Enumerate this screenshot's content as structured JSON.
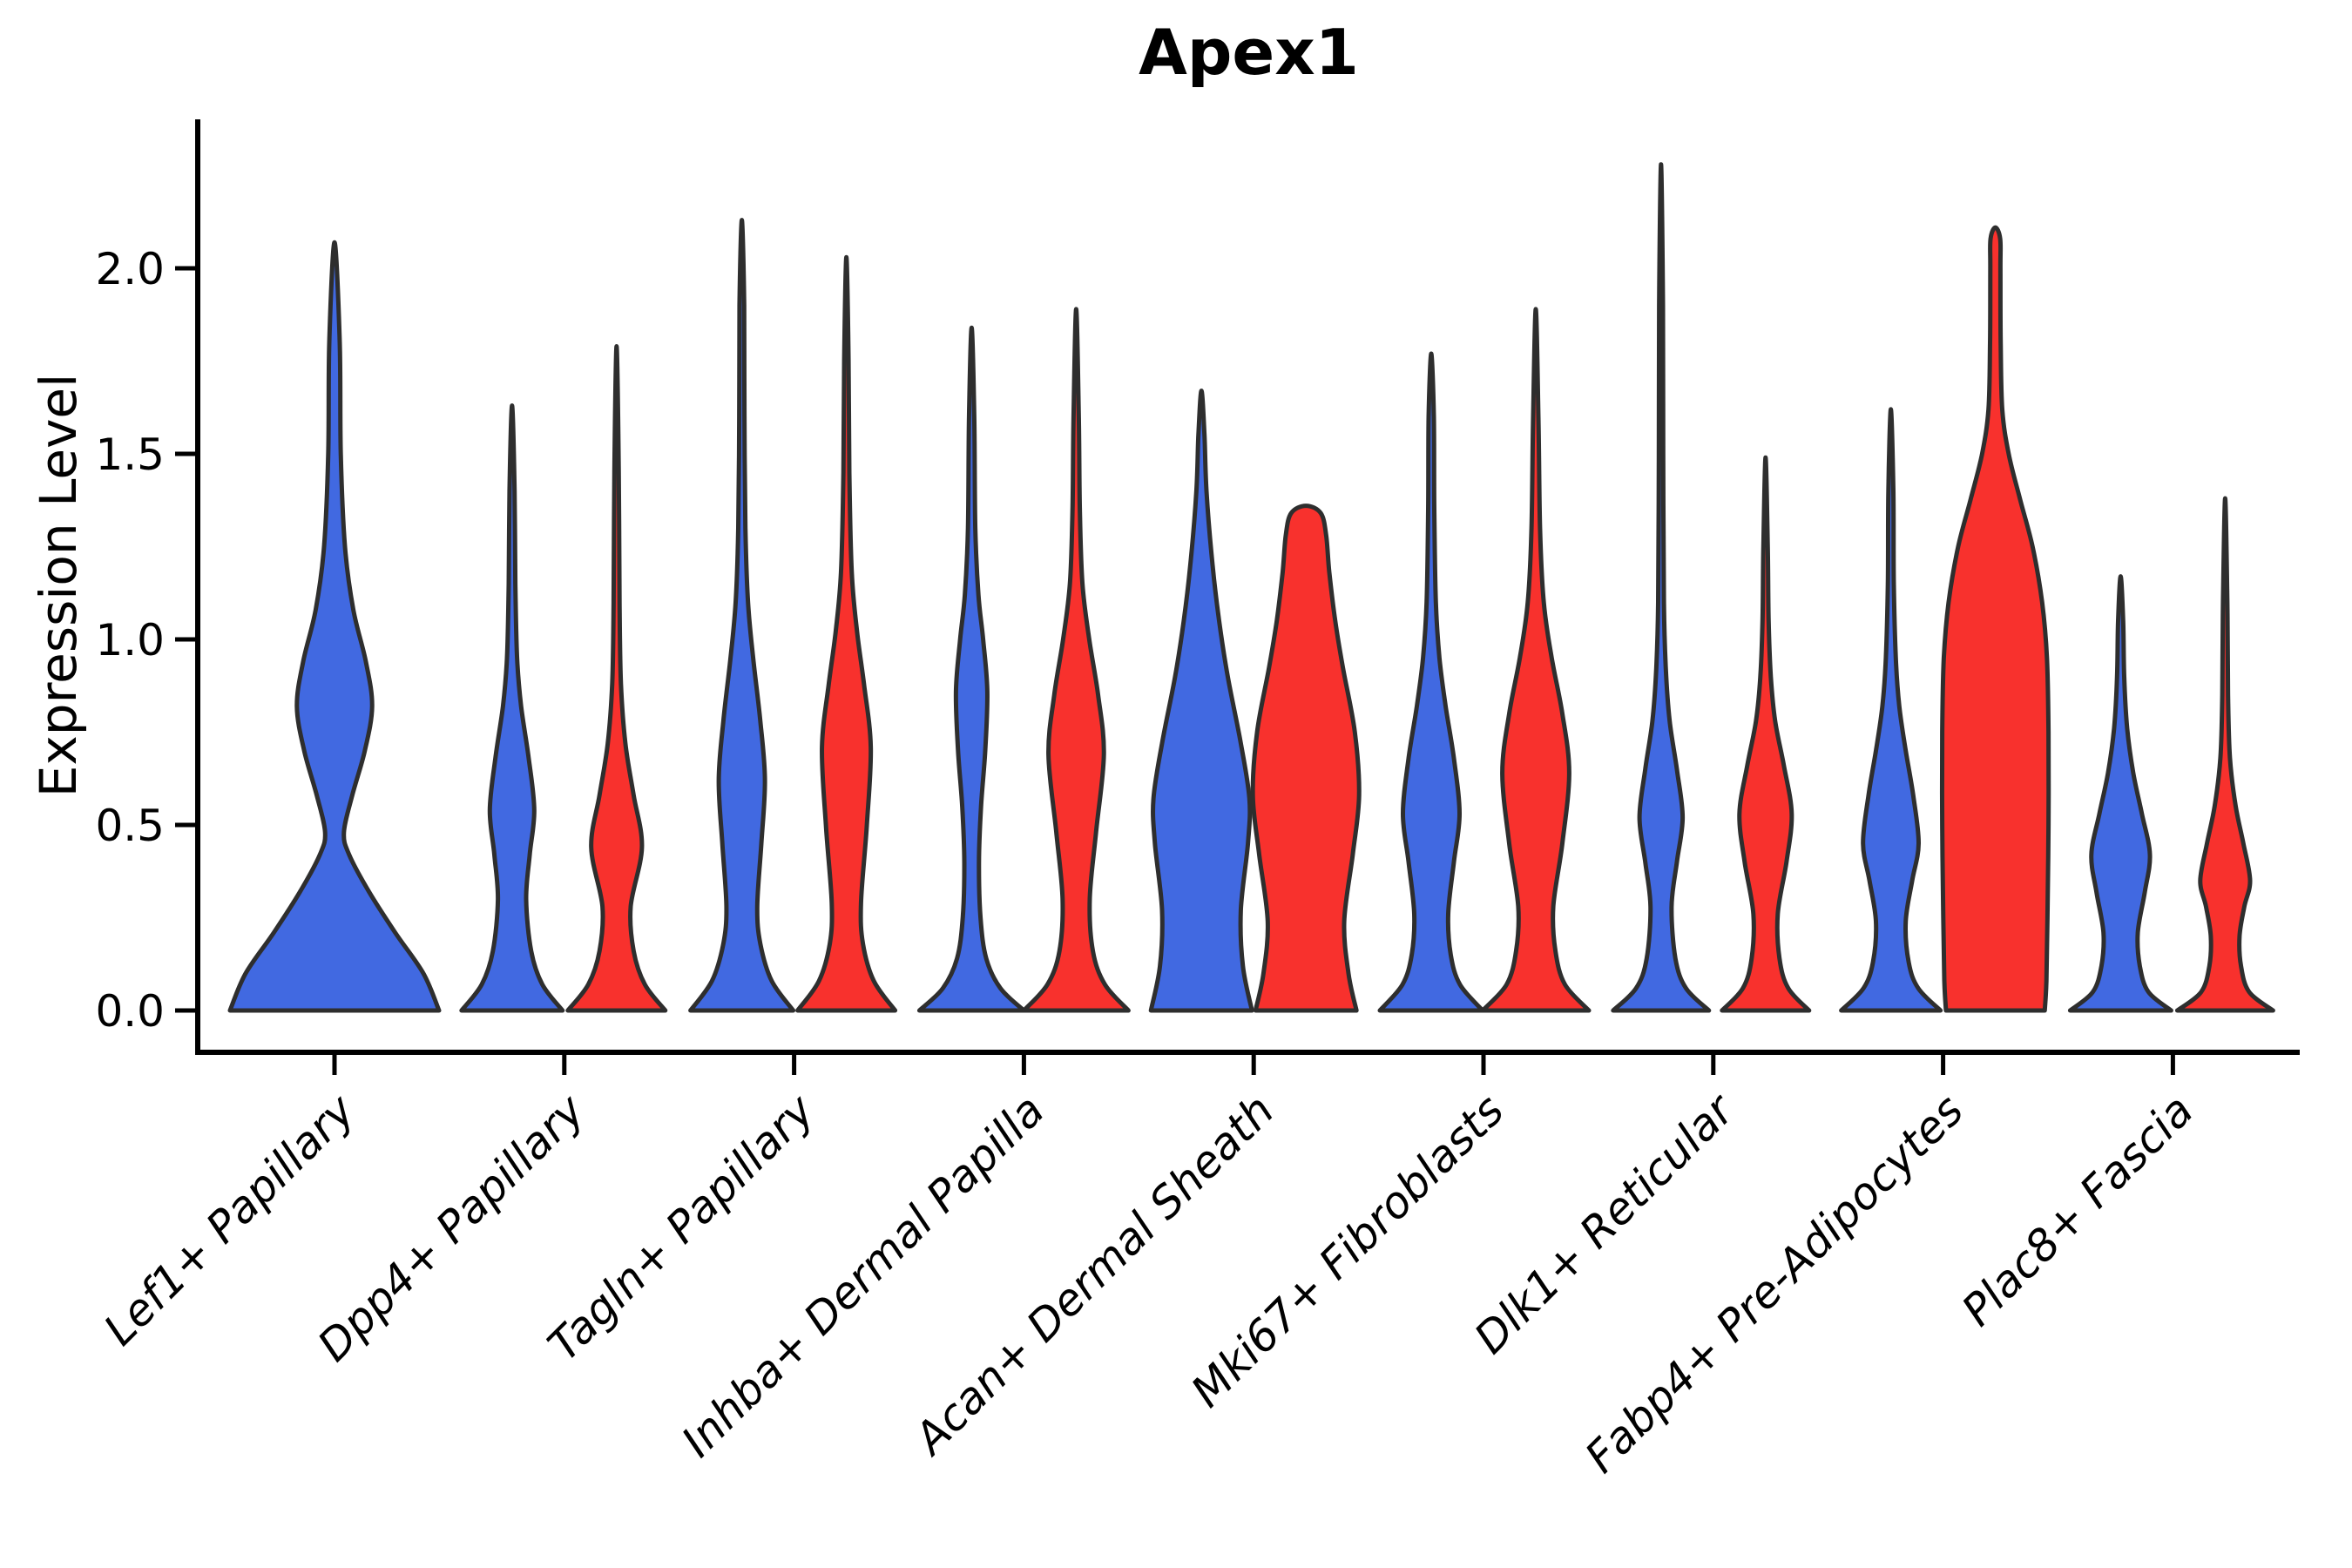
{
  "chart_data": {
    "type": "violin",
    "title": "Apex1",
    "xlabel": "",
    "ylabel": "Expression Level",
    "ylim": [
      -0.11,
      2.4
    ],
    "yticks": [
      0.0,
      0.5,
      1.0,
      1.5,
      2.0
    ],
    "grid": false,
    "legend": "none",
    "categories": [
      "Lef1+ Papillary",
      "Dpp4+ Papillary",
      "Tagln+ Papillary",
      "Inhba+ Dermal Papilla",
      "Acan+ Dermal Sheath",
      "Mki67+ Fibroblasts",
      "Dlk1+ Reticular",
      "Fabp4+ Pre-Adipocytes",
      "Plac8+ Fascia"
    ],
    "series": [
      {
        "name": "blue",
        "color": "#4169E1"
      },
      {
        "name": "red",
        "color": "#F8312D"
      }
    ],
    "colors": {
      "blue": "#4169E1",
      "red": "#F8312D",
      "outline": "#2E2E2E",
      "axis": "#000000"
    },
    "violins": [
      {
        "category": 0,
        "group": "blue",
        "dx": 0,
        "halfwidth": 120,
        "max": 2.07,
        "profile": [
          [
            0,
            1
          ],
          [
            0.1,
            0.85
          ],
          [
            0.21,
            0.58
          ],
          [
            0.32,
            0.33
          ],
          [
            0.42,
            0.14
          ],
          [
            0.48,
            0.09
          ],
          [
            0.58,
            0.17
          ],
          [
            0.7,
            0.29
          ],
          [
            0.82,
            0.36
          ],
          [
            0.94,
            0.3
          ],
          [
            1.08,
            0.18
          ],
          [
            1.25,
            0.1
          ],
          [
            1.5,
            0.06
          ],
          [
            1.8,
            0.05
          ],
          [
            2.07,
            0
          ]
        ]
      },
      {
        "category": 1,
        "group": "blue",
        "dx": -60,
        "halfwidth": 58,
        "max": 1.63,
        "profile": [
          [
            0,
            1
          ],
          [
            0.07,
            0.6
          ],
          [
            0.16,
            0.38
          ],
          [
            0.3,
            0.28
          ],
          [
            0.42,
            0.35
          ],
          [
            0.54,
            0.44
          ],
          [
            0.68,
            0.33
          ],
          [
            0.82,
            0.18
          ],
          [
            0.95,
            0.1
          ],
          [
            1.15,
            0.065
          ],
          [
            1.4,
            0.05
          ],
          [
            1.63,
            0
          ]
        ]
      },
      {
        "category": 1,
        "group": "red",
        "dx": 60,
        "halfwidth": 56,
        "max": 1.79,
        "profile": [
          [
            0,
            1
          ],
          [
            0.07,
            0.58
          ],
          [
            0.16,
            0.35
          ],
          [
            0.28,
            0.29
          ],
          [
            0.44,
            0.52
          ],
          [
            0.58,
            0.35
          ],
          [
            0.72,
            0.18
          ],
          [
            0.88,
            0.09
          ],
          [
            1.1,
            0.06
          ],
          [
            1.45,
            0.045
          ],
          [
            1.79,
            0
          ]
        ]
      },
      {
        "category": 2,
        "group": "blue",
        "dx": -60,
        "halfwidth": 59,
        "max": 2.13,
        "profile": [
          [
            0,
            1
          ],
          [
            0.08,
            0.58
          ],
          [
            0.18,
            0.36
          ],
          [
            0.28,
            0.3
          ],
          [
            0.45,
            0.38
          ],
          [
            0.62,
            0.45
          ],
          [
            0.78,
            0.36
          ],
          [
            0.95,
            0.22
          ],
          [
            1.1,
            0.12
          ],
          [
            1.3,
            0.07
          ],
          [
            1.6,
            0.05
          ],
          [
            1.9,
            0.045
          ],
          [
            2.13,
            0
          ]
        ]
      },
      {
        "category": 2,
        "group": "red",
        "dx": 60,
        "halfwidth": 56,
        "max": 2.03,
        "profile": [
          [
            0,
            1
          ],
          [
            0.08,
            0.56
          ],
          [
            0.18,
            0.34
          ],
          [
            0.29,
            0.3
          ],
          [
            0.5,
            0.42
          ],
          [
            0.71,
            0.5
          ],
          [
            0.88,
            0.36
          ],
          [
            1.02,
            0.22
          ],
          [
            1.18,
            0.11
          ],
          [
            1.45,
            0.06
          ],
          [
            1.75,
            0.045
          ],
          [
            2.03,
            0
          ]
        ]
      },
      {
        "category": 3,
        "group": "blue",
        "dx": -60,
        "halfwidth": 60,
        "max": 1.84,
        "profile": [
          [
            0,
            1
          ],
          [
            0.06,
            0.55
          ],
          [
            0.14,
            0.28
          ],
          [
            0.25,
            0.17
          ],
          [
            0.4,
            0.14
          ],
          [
            0.55,
            0.18
          ],
          [
            0.7,
            0.26
          ],
          [
            0.86,
            0.3
          ],
          [
            1.0,
            0.22
          ],
          [
            1.12,
            0.13
          ],
          [
            1.3,
            0.07
          ],
          [
            1.6,
            0.05
          ],
          [
            1.84,
            0
          ]
        ]
      },
      {
        "category": 3,
        "group": "red",
        "dx": 60,
        "halfwidth": 60,
        "max": 1.89,
        "profile": [
          [
            0,
            1
          ],
          [
            0.07,
            0.55
          ],
          [
            0.16,
            0.32
          ],
          [
            0.3,
            0.26
          ],
          [
            0.48,
            0.38
          ],
          [
            0.69,
            0.53
          ],
          [
            0.85,
            0.42
          ],
          [
            1.0,
            0.25
          ],
          [
            1.15,
            0.12
          ],
          [
            1.35,
            0.07
          ],
          [
            1.6,
            0.05
          ],
          [
            1.89,
            0
          ]
        ]
      },
      {
        "category": 4,
        "group": "blue",
        "dx": -60,
        "halfwidth": 58,
        "max": 1.67,
        "profile": [
          [
            0,
            1
          ],
          [
            0.12,
            0.82
          ],
          [
            0.27,
            0.78
          ],
          [
            0.45,
            0.92
          ],
          [
            0.57,
            0.95
          ],
          [
            0.72,
            0.78
          ],
          [
            0.9,
            0.52
          ],
          [
            1.05,
            0.35
          ],
          [
            1.2,
            0.22
          ],
          [
            1.4,
            0.1
          ],
          [
            1.55,
            0.06
          ],
          [
            1.67,
            0
          ]
        ]
      },
      {
        "category": 4,
        "group": "red",
        "dx": 60,
        "halfwidth": 61,
        "max": 1.36,
        "profile": [
          [
            0,
            0.95
          ],
          [
            0.1,
            0.8
          ],
          [
            0.24,
            0.72
          ],
          [
            0.42,
            0.88
          ],
          [
            0.58,
            1.0
          ],
          [
            0.75,
            0.92
          ],
          [
            0.92,
            0.7
          ],
          [
            1.05,
            0.55
          ],
          [
            1.18,
            0.44
          ],
          [
            1.28,
            0.38
          ],
          [
            1.34,
            0.28
          ],
          [
            1.36,
            0
          ]
        ]
      },
      {
        "category": 5,
        "group": "blue",
        "dx": -60,
        "halfwidth": 59,
        "max": 1.77,
        "profile": [
          [
            0,
            1
          ],
          [
            0.07,
            0.56
          ],
          [
            0.15,
            0.38
          ],
          [
            0.26,
            0.33
          ],
          [
            0.4,
            0.44
          ],
          [
            0.53,
            0.55
          ],
          [
            0.68,
            0.44
          ],
          [
            0.82,
            0.28
          ],
          [
            0.95,
            0.16
          ],
          [
            1.1,
            0.09
          ],
          [
            1.35,
            0.06
          ],
          [
            1.6,
            0.05
          ],
          [
            1.77,
            0
          ]
        ]
      },
      {
        "category": 5,
        "group": "red",
        "dx": 60,
        "halfwidth": 61,
        "max": 1.89,
        "profile": [
          [
            0,
            1
          ],
          [
            0.07,
            0.55
          ],
          [
            0.16,
            0.37
          ],
          [
            0.28,
            0.33
          ],
          [
            0.45,
            0.5
          ],
          [
            0.64,
            0.63
          ],
          [
            0.8,
            0.5
          ],
          [
            0.95,
            0.3
          ],
          [
            1.1,
            0.15
          ],
          [
            1.3,
            0.08
          ],
          [
            1.6,
            0.05
          ],
          [
            1.89,
            0
          ]
        ]
      },
      {
        "category": 6,
        "group": "blue",
        "dx": -60,
        "halfwidth": 55,
        "max": 2.28,
        "profile": [
          [
            0,
            1
          ],
          [
            0.06,
            0.52
          ],
          [
            0.14,
            0.3
          ],
          [
            0.28,
            0.22
          ],
          [
            0.4,
            0.33
          ],
          [
            0.52,
            0.45
          ],
          [
            0.65,
            0.33
          ],
          [
            0.78,
            0.18
          ],
          [
            0.92,
            0.1
          ],
          [
            1.1,
            0.06
          ],
          [
            1.5,
            0.045
          ],
          [
            1.9,
            0.04
          ],
          [
            2.28,
            0
          ]
        ]
      },
      {
        "category": 6,
        "group": "red",
        "dx": 60,
        "halfwidth": 50,
        "max": 1.49,
        "profile": [
          [
            0,
            1
          ],
          [
            0.06,
            0.52
          ],
          [
            0.14,
            0.32
          ],
          [
            0.26,
            0.28
          ],
          [
            0.4,
            0.48
          ],
          [
            0.53,
            0.6
          ],
          [
            0.66,
            0.42
          ],
          [
            0.78,
            0.22
          ],
          [
            0.9,
            0.12
          ],
          [
            1.05,
            0.07
          ],
          [
            1.25,
            0.05
          ],
          [
            1.49,
            0
          ]
        ]
      },
      {
        "category": 7,
        "group": "blue",
        "dx": -60,
        "halfwidth": 57,
        "max": 1.62,
        "profile": [
          [
            0,
            1
          ],
          [
            0.06,
            0.55
          ],
          [
            0.13,
            0.36
          ],
          [
            0.24,
            0.3
          ],
          [
            0.35,
            0.43
          ],
          [
            0.45,
            0.56
          ],
          [
            0.58,
            0.45
          ],
          [
            0.7,
            0.3
          ],
          [
            0.82,
            0.17
          ],
          [
            0.95,
            0.1
          ],
          [
            1.15,
            0.06
          ],
          [
            1.4,
            0.05
          ],
          [
            1.62,
            0
          ]
        ]
      },
      {
        "category": 7,
        "group": "red",
        "dx": 60,
        "halfwidth": 61,
        "max": 2.11,
        "profile": [
          [
            0,
            0.93
          ],
          [
            0.08,
            0.96
          ],
          [
            0.25,
            0.98
          ],
          [
            0.5,
            1
          ],
          [
            0.75,
            1
          ],
          [
            0.95,
            0.97
          ],
          [
            1.1,
            0.88
          ],
          [
            1.25,
            0.7
          ],
          [
            1.38,
            0.46
          ],
          [
            1.5,
            0.25
          ],
          [
            1.62,
            0.13
          ],
          [
            1.8,
            0.1
          ],
          [
            2.0,
            0.095
          ],
          [
            2.08,
            0.09
          ],
          [
            2.11,
            0
          ]
        ]
      },
      {
        "category": 8,
        "group": "blue",
        "dx": -60,
        "halfwidth": 58,
        "max": 1.17,
        "profile": [
          [
            0,
            1
          ],
          [
            0.05,
            0.55
          ],
          [
            0.12,
            0.38
          ],
          [
            0.21,
            0.34
          ],
          [
            0.32,
            0.48
          ],
          [
            0.42,
            0.58
          ],
          [
            0.53,
            0.42
          ],
          [
            0.64,
            0.25
          ],
          [
            0.76,
            0.13
          ],
          [
            0.9,
            0.07
          ],
          [
            1.05,
            0.05
          ],
          [
            1.17,
            0
          ]
        ]
      },
      {
        "category": 8,
        "group": "red",
        "dx": 60,
        "halfwidth": 55,
        "max": 1.38,
        "profile": [
          [
            0,
            1
          ],
          [
            0.05,
            0.5
          ],
          [
            0.12,
            0.33
          ],
          [
            0.2,
            0.3
          ],
          [
            0.28,
            0.4
          ],
          [
            0.35,
            0.52
          ],
          [
            0.45,
            0.38
          ],
          [
            0.55,
            0.22
          ],
          [
            0.68,
            0.1
          ],
          [
            0.85,
            0.06
          ],
          [
            1.1,
            0.045
          ],
          [
            1.38,
            0
          ]
        ]
      }
    ]
  }
}
